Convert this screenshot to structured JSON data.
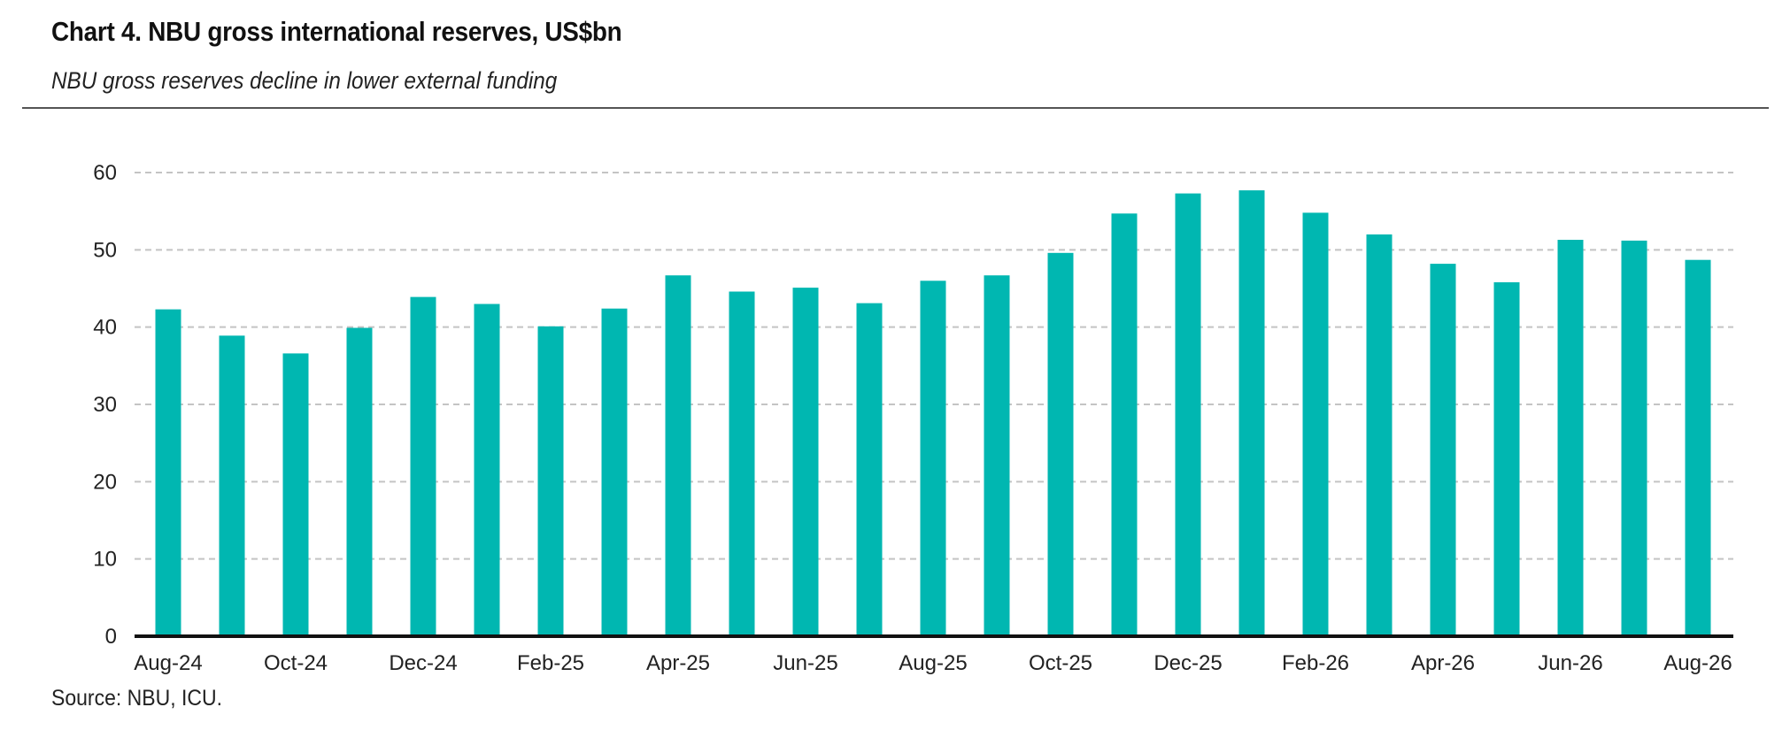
{
  "chart_data": {
    "type": "bar",
    "title": "Chart 4. NBU gross international reserves, US$bn",
    "subtitle": "NBU gross reserves decline in lower external funding",
    "xlabel": "",
    "ylabel": "",
    "categories": [
      "Aug-24",
      "Sep-24",
      "Oct-24",
      "Nov-24",
      "Dec-24",
      "Jan-25",
      "Feb-25",
      "Mar-25",
      "Apr-25",
      "May-25",
      "Jun-25",
      "Jul-25",
      "Aug-25",
      "Sep-25",
      "Oct-25",
      "Nov-25",
      "Dec-25",
      "Jan-26",
      "Feb-26",
      "Mar-26",
      "Apr-26",
      "May-26",
      "Jun-26",
      "Jul-26",
      "Aug-26"
    ],
    "x_tick_labels": [
      "Aug-24",
      "Oct-24",
      "Dec-24",
      "Feb-25",
      "Apr-25",
      "Jun-25",
      "Aug-25",
      "Oct-25",
      "Dec-25",
      "Feb-26",
      "Apr-26",
      "Jun-26",
      "Aug-26"
    ],
    "values": [
      42.3,
      38.9,
      36.6,
      39.9,
      43.9,
      43.0,
      40.1,
      42.4,
      46.7,
      44.6,
      45.1,
      43.1,
      46.0,
      46.7,
      49.6,
      54.7,
      57.3,
      57.7,
      54.8,
      52.0,
      48.2,
      45.8,
      51.3,
      51.2,
      48.7
    ],
    "ylim": [
      0,
      60
    ],
    "yticks": [
      0,
      10,
      20,
      30,
      40,
      50,
      60
    ],
    "grid": true,
    "bar_color": "#00B7B1",
    "source": "Source: NBU, ICU."
  }
}
